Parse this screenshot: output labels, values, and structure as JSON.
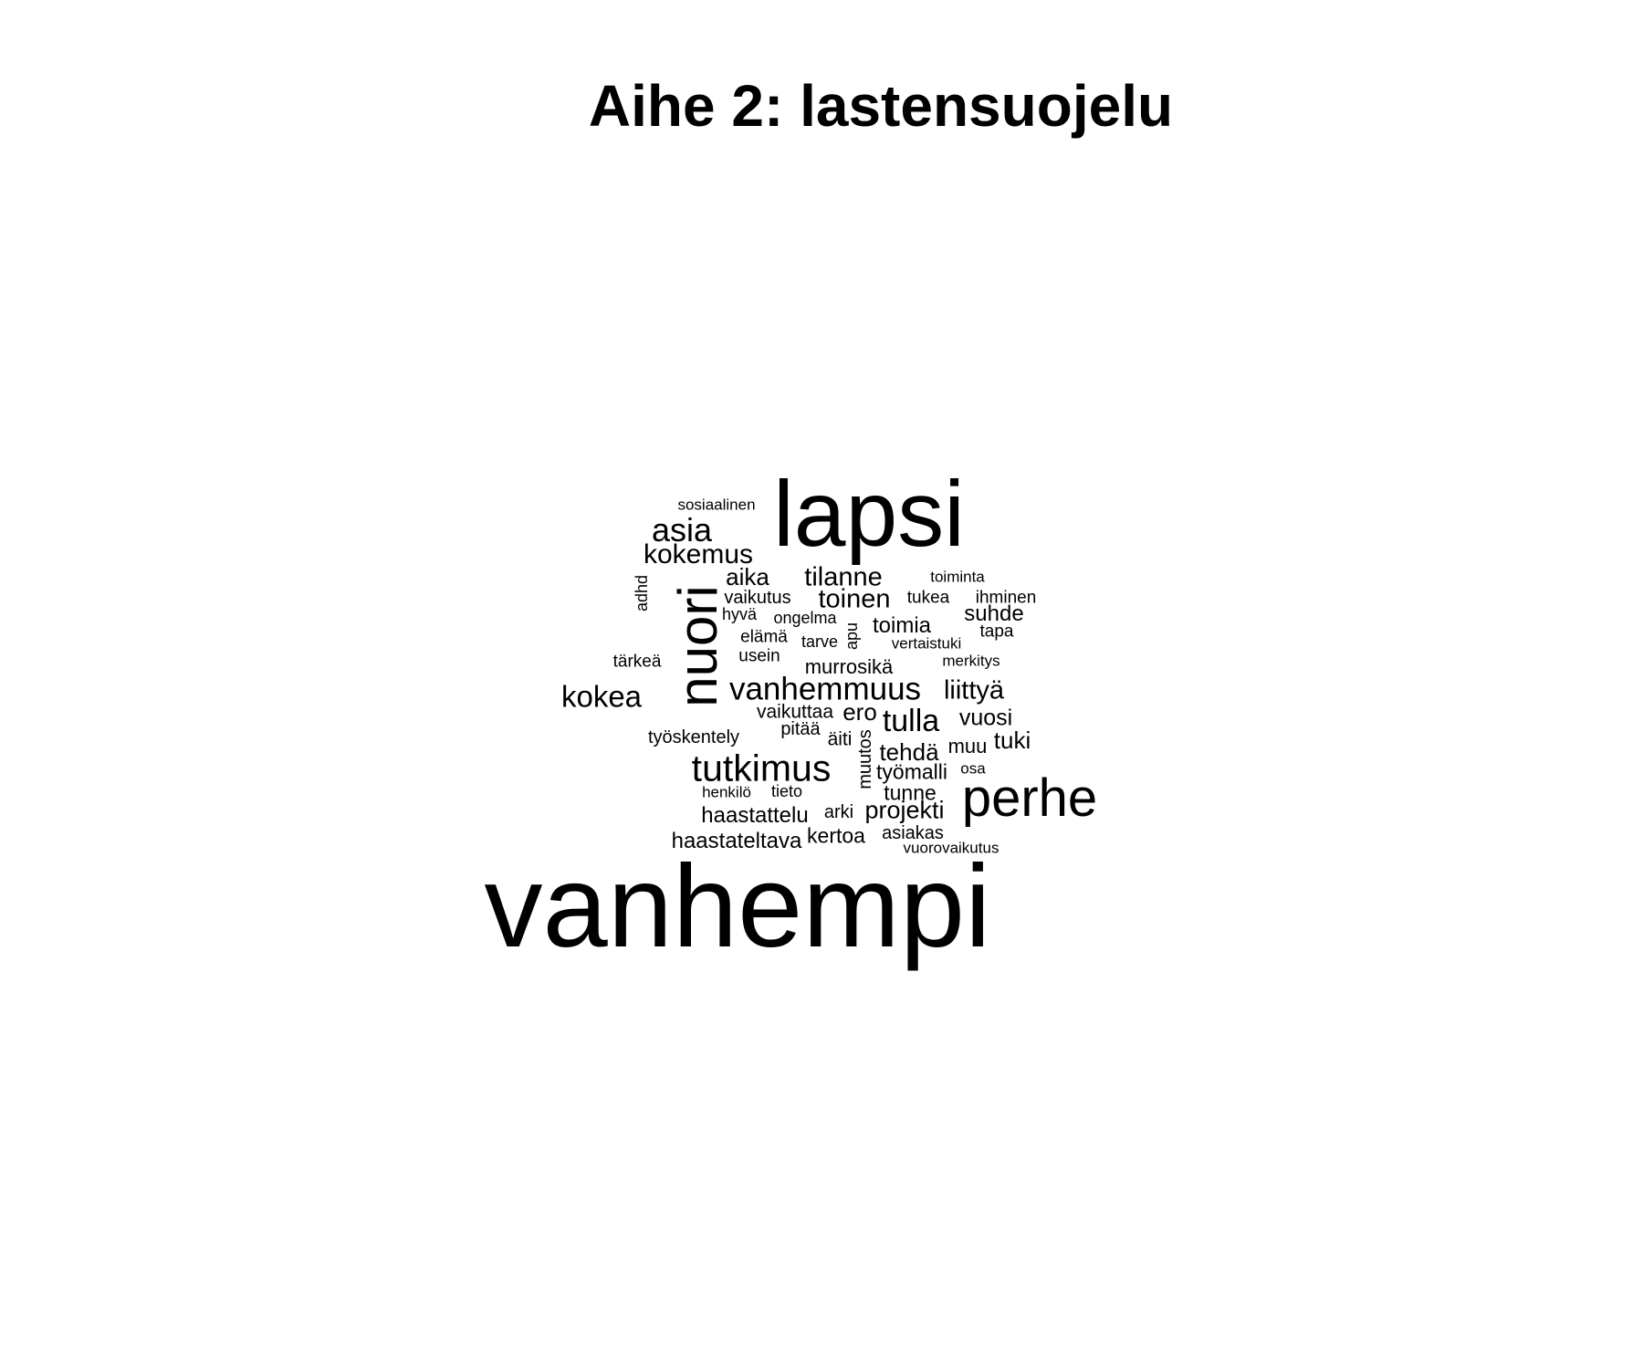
{
  "title": "Aihe 2: lastensuojelu",
  "words": [
    {
      "text": "vanhempi",
      "rank": 1
    },
    {
      "text": "lapsi",
      "rank": 2
    },
    {
      "text": "nuori",
      "rank": 3
    },
    {
      "text": "perhe",
      "rank": 4
    },
    {
      "text": "tutkimus",
      "rank": 5
    },
    {
      "text": "vanhemmuus",
      "rank": 6
    },
    {
      "text": "asia",
      "rank": 7
    },
    {
      "text": "kokea",
      "rank": 8
    },
    {
      "text": "tulla",
      "rank": 9
    },
    {
      "text": "kokemus",
      "rank": 10
    },
    {
      "text": "tilanne",
      "rank": 11
    },
    {
      "text": "toinen",
      "rank": 12
    },
    {
      "text": "liittyä",
      "rank": 13
    },
    {
      "text": "aika",
      "rank": 14
    },
    {
      "text": "projekti",
      "rank": 15
    },
    {
      "text": "haastattelu",
      "rank": 16
    },
    {
      "text": "haastateltava",
      "rank": 17
    },
    {
      "text": "toimia",
      "rank": 18
    },
    {
      "text": "tehdä",
      "rank": 19
    },
    {
      "text": "ero",
      "rank": 20
    },
    {
      "text": "tuki",
      "rank": 21
    },
    {
      "text": "suhde",
      "rank": 22
    },
    {
      "text": "vuosi",
      "rank": 23
    },
    {
      "text": "työmalli",
      "rank": 24
    },
    {
      "text": "tunne",
      "rank": 25
    },
    {
      "text": "kertoa",
      "rank": 26
    },
    {
      "text": "asiakas",
      "rank": 27
    },
    {
      "text": "muu",
      "rank": 28
    },
    {
      "text": "murrosikä",
      "rank": 29
    },
    {
      "text": "muutos",
      "rank": 30
    },
    {
      "text": "arki",
      "rank": 31
    },
    {
      "text": "äiti",
      "rank": 32
    },
    {
      "text": "vaikuttaa",
      "rank": 33
    },
    {
      "text": "vaikutus",
      "rank": 34
    },
    {
      "text": "pitää",
      "rank": 35
    },
    {
      "text": "työskentely",
      "rank": 36
    },
    {
      "text": "tukea",
      "rank": 37
    },
    {
      "text": "ihminen",
      "rank": 38
    },
    {
      "text": "tapa",
      "rank": 39
    },
    {
      "text": "elämä",
      "rank": 40
    },
    {
      "text": "ongelma",
      "rank": 41
    },
    {
      "text": "tarve",
      "rank": 42
    },
    {
      "text": "usein",
      "rank": 43
    },
    {
      "text": "apu",
      "rank": 44
    },
    {
      "text": "hyvä",
      "rank": 45
    },
    {
      "text": "tärkeä",
      "rank": 46
    },
    {
      "text": "adhd",
      "rank": 47
    },
    {
      "text": "vertaistuki",
      "rank": 48
    },
    {
      "text": "merkitys",
      "rank": 49
    },
    {
      "text": "sosiaalinen",
      "rank": 50
    },
    {
      "text": "toiminta",
      "rank": 51
    },
    {
      "text": "henkilö",
      "rank": 52
    },
    {
      "text": "tieto",
      "rank": 53
    },
    {
      "text": "osa",
      "rank": 54
    },
    {
      "text": "vuorovaikutus",
      "rank": 55
    }
  ]
}
